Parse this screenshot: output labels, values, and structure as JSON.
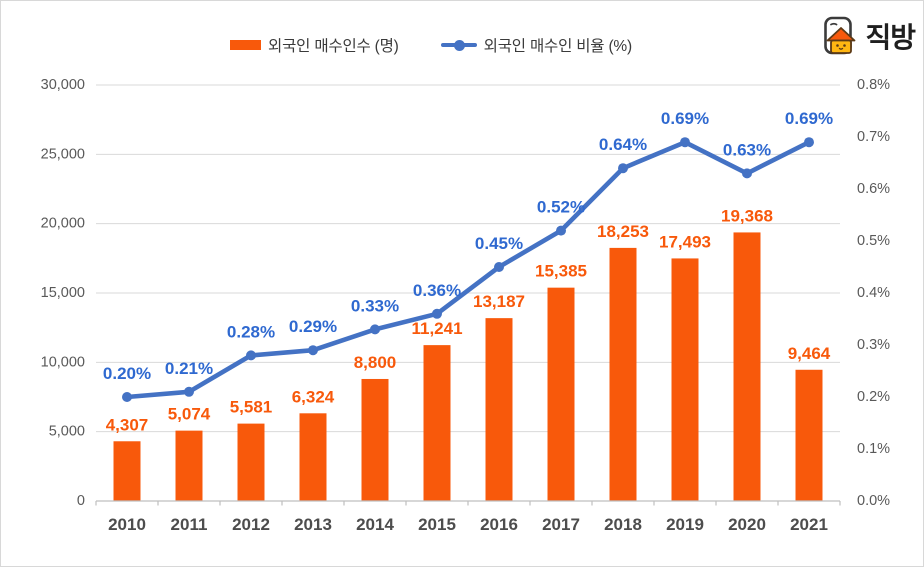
{
  "logo": {
    "text": "직방",
    "icon": "zigbang-house-icon"
  },
  "legend": [
    {
      "label": "외국인 매수인수 (명)",
      "swatch_color": "#F8590B"
    },
    {
      "label": "외국인 매수인 비율 (%)",
      "swatch_color": "#4472C4"
    }
  ],
  "chart_data": {
    "type": "bar+line",
    "categories": [
      "2010",
      "2011",
      "2012",
      "2013",
      "2014",
      "2015",
      "2016",
      "2017",
      "2018",
      "2019",
      "2020",
      "2021"
    ],
    "series": [
      {
        "name": "외국인 매수인수 (명)",
        "type": "bar",
        "axis": "left",
        "color": "#F8590B",
        "label_color": "#F8590B",
        "values": [
          4307,
          5074,
          5581,
          6324,
          8800,
          11241,
          13187,
          15385,
          18253,
          17493,
          19368,
          9464
        ],
        "labels": [
          "4,307",
          "5,074",
          "5,581",
          "6,324",
          "8,800",
          "11,241",
          "13,187",
          "15,385",
          "18,253",
          "17,493",
          "19,368",
          "9,464"
        ]
      },
      {
        "name": "외국인 매수인 비율 (%)",
        "type": "line",
        "axis": "right",
        "color": "#4472C4",
        "label_color": "#2F69D0",
        "values": [
          0.2,
          0.21,
          0.28,
          0.29,
          0.33,
          0.36,
          0.45,
          0.52,
          0.64,
          0.69,
          0.63,
          0.69
        ],
        "labels": [
          "0.20%",
          "0.21%",
          "0.28%",
          "0.29%",
          "0.33%",
          "0.36%",
          "0.45%",
          "0.52%",
          "0.64%",
          "0.69%",
          "0.63%",
          "0.69%"
        ]
      }
    ],
    "left_axis": {
      "min": 0,
      "max": 30000,
      "step": 5000,
      "tick_labels": [
        "0",
        "5,000",
        "10,000",
        "15,000",
        "20,000",
        "25,000",
        "30,000"
      ]
    },
    "right_axis": {
      "min": 0,
      "max": 0.8,
      "step": 0.1,
      "tick_labels": [
        "0.0%",
        "0.1%",
        "0.2%",
        "0.3%",
        "0.4%",
        "0.5%",
        "0.6%",
        "0.7%",
        "0.8%"
      ]
    },
    "grid": true,
    "grid_color": "#D9D9D9",
    "axis_color": "#BFBFBF",
    "tick_text_color": "#595959",
    "legend_position": "top"
  }
}
